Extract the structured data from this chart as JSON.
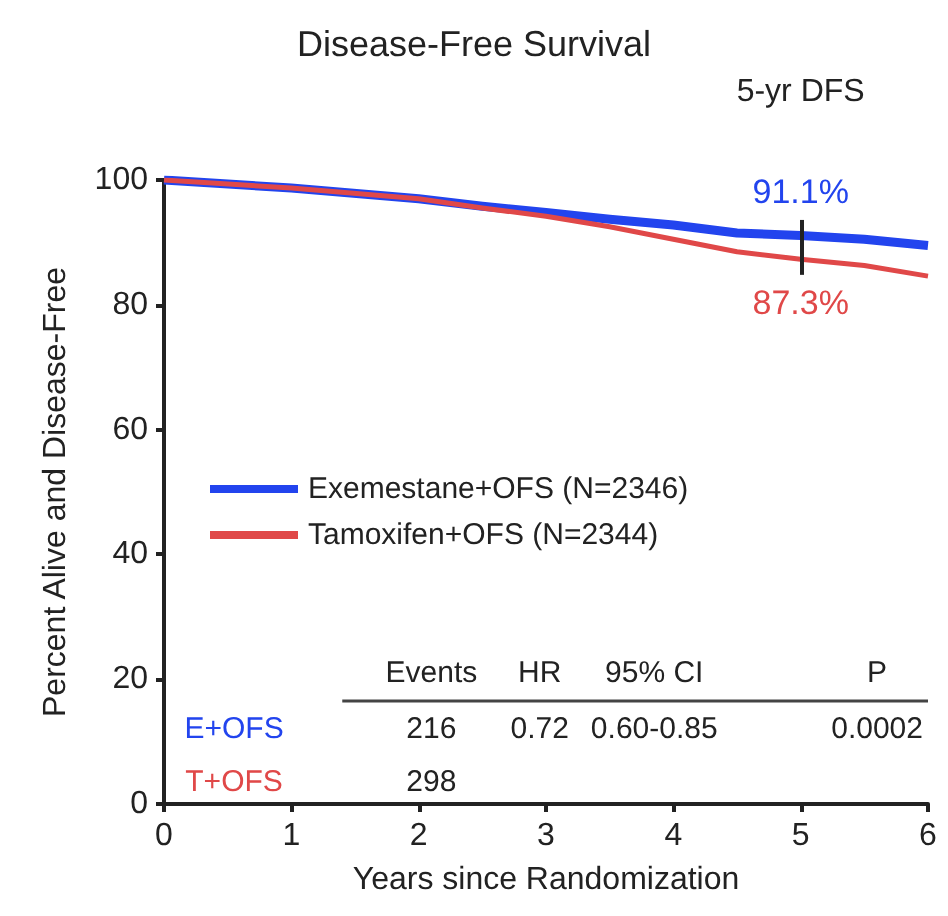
{
  "chart_data": {
    "type": "line",
    "title": "Disease-Free Survival",
    "xlabel": "Years since Randomization",
    "ylabel": "Percent Alive and Disease-Free",
    "x": [
      0,
      1,
      2,
      2.5,
      3,
      3.5,
      4,
      4.5,
      5,
      5.5,
      6
    ],
    "series": [
      {
        "name": "Exemestane+OFS (N=2346)",
        "color": "#2244ee",
        "values": [
          100,
          98.7,
          97,
          95.8,
          94.8,
          93.7,
          92.8,
          91.5,
          91.1,
          90.5,
          89.5
        ]
      },
      {
        "name": "Tamoxifen+OFS (N=2344)",
        "color": "#e04848",
        "values": [
          100,
          98.7,
          97,
          95.5,
          94.2,
          92.5,
          90.5,
          88.5,
          87.3,
          86.3,
          84.6
        ]
      }
    ],
    "xlim": [
      0,
      6
    ],
    "xticks": [
      0,
      1,
      2,
      3,
      4,
      5,
      6
    ],
    "ylim": [
      0,
      100
    ],
    "yticks": [
      0,
      20,
      40,
      60,
      80,
      100
    ],
    "legend": "center left",
    "marker": "none",
    "line_style": "solid",
    "grid": false,
    "annotations": [
      "5-yr DFS",
      {
        "text": "91.1%",
        "x": 5,
        "y": 91.1
      },
      {
        "text": "87.3%",
        "x": 5,
        "y": 87.3
      },
      "Events",
      "HR",
      "95% CI",
      "P",
      "E+OFS",
      "216",
      "0.72",
      "0.60-0.85",
      "0.0002",
      "T+OFS",
      "298"
    ]
  }
}
